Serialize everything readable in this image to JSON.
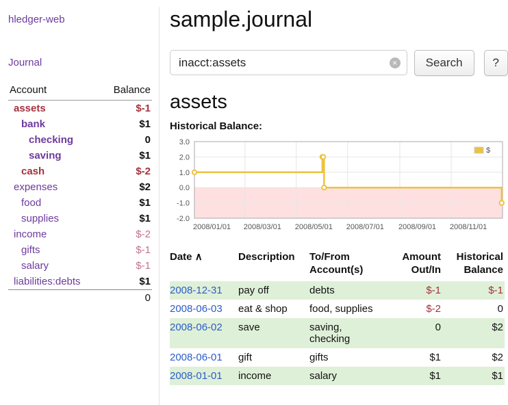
{
  "palette": {
    "purple": "#6d3a9e",
    "blue_link": "#2a5cc8",
    "negative": "#a3323c",
    "negative_muted": "#c2738c",
    "row_green": "#dff0d8"
  },
  "sidebar": {
    "app_title": "hledger-web",
    "nav_journal": "Journal",
    "accounts": {
      "header_account": "Account",
      "header_balance": "Balance",
      "rows": [
        {
          "name": "assets",
          "balance": "$-1",
          "indent": 0,
          "bold": true,
          "neg": true
        },
        {
          "name": "bank",
          "balance": "$1",
          "indent": 1,
          "bold": true
        },
        {
          "name": "checking",
          "balance": "0",
          "indent": 2,
          "bold": true
        },
        {
          "name": "saving",
          "balance": "$1",
          "indent": 2,
          "bold": true
        },
        {
          "name": "cash",
          "balance": "$-2",
          "indent": 1,
          "bold": true,
          "neg": true
        },
        {
          "name": "expenses",
          "balance": "$2",
          "indent": 0
        },
        {
          "name": "food",
          "balance": "$1",
          "indent": 1
        },
        {
          "name": "supplies",
          "balance": "$1",
          "indent": 1
        },
        {
          "name": "income",
          "balance": "$-2",
          "indent": 0,
          "muted": true
        },
        {
          "name": "gifts",
          "balance": "$-1",
          "indent": 1,
          "muted": true
        },
        {
          "name": "salary",
          "balance": "$-1",
          "indent": 1,
          "muted": true
        },
        {
          "name": "liabilities:debts",
          "balance": "$1",
          "indent": 0
        }
      ],
      "total": "0"
    }
  },
  "main": {
    "title": "sample.journal",
    "search": {
      "value": "inacct:assets",
      "clear_icon": "×",
      "button": "Search",
      "help_button": "?"
    },
    "section_title": "assets",
    "chart_label": "Historical Balance:",
    "table": {
      "headers": {
        "date": "Date",
        "sort_indicator": "∧",
        "description": "Description",
        "tofrom_line1": "To/From",
        "tofrom_line2": "Account(s)",
        "amount_line1": "Amount",
        "amount_line2": "Out/In",
        "hist_line1": "Historical",
        "hist_line2": "Balance"
      },
      "rows": [
        {
          "date": "2008-12-31",
          "description": "pay off",
          "accounts": "debts",
          "amount": "$-1",
          "balance": "$-1",
          "amount_neg": true,
          "balance_neg": true
        },
        {
          "date": "2008-06-03",
          "description": "eat & shop",
          "accounts": "food, supplies",
          "amount": "$-2",
          "balance": "0",
          "amount_neg": true
        },
        {
          "date": "2008-06-02",
          "description": "save",
          "accounts": "saving,\nchecking",
          "amount": "0",
          "balance": "$2"
        },
        {
          "date": "2008-06-01",
          "description": "gift",
          "accounts": "gifts",
          "amount": "$1",
          "balance": "$2"
        },
        {
          "date": "2008-01-01",
          "description": "income",
          "accounts": "salary",
          "amount": "$1",
          "balance": "$1"
        }
      ]
    }
  },
  "chart_data": {
    "type": "line",
    "steps": true,
    "title": "Historical Balance",
    "legend_label": "$",
    "legend_position": "top-right",
    "series": [
      {
        "name": "$",
        "color": "#edc240",
        "points": [
          [
            "2008-01-01",
            1
          ],
          [
            "2008-06-01",
            2
          ],
          [
            "2008-06-02",
            2
          ],
          [
            "2008-06-03",
            0
          ],
          [
            "2008-12-31",
            -1
          ]
        ]
      }
    ],
    "x_domain": [
      "2008-01-01",
      "2009-01-01"
    ],
    "x_ticks": [
      {
        "date": "2008-01-01",
        "label": "2008/01/01"
      },
      {
        "date": "2008-03-01",
        "label": "2008/03/01"
      },
      {
        "date": "2008-05-01",
        "label": "2008/05/01"
      },
      {
        "date": "2008-07-01",
        "label": "2008/07/01"
      },
      {
        "date": "2008-09-01",
        "label": "2008/09/01"
      },
      {
        "date": "2008-11-01",
        "label": "2008/11/01"
      }
    ],
    "y_ticks": [
      {
        "value": 3,
        "label": "3.0"
      },
      {
        "value": 2,
        "label": "2.0"
      },
      {
        "value": 1,
        "label": "1.0"
      },
      {
        "value": 0,
        "label": "0.0"
      },
      {
        "value": -1,
        "label": "-1.0"
      },
      {
        "value": -2,
        "label": "-2.0"
      }
    ],
    "ylim": [
      -2,
      3
    ],
    "grid": true,
    "negative_region_color": "rgba(255,0,0,0.12)",
    "grid_color": "#e6e6e6",
    "border_color": "#aaaaaa",
    "tick_label_color": "#545454"
  }
}
